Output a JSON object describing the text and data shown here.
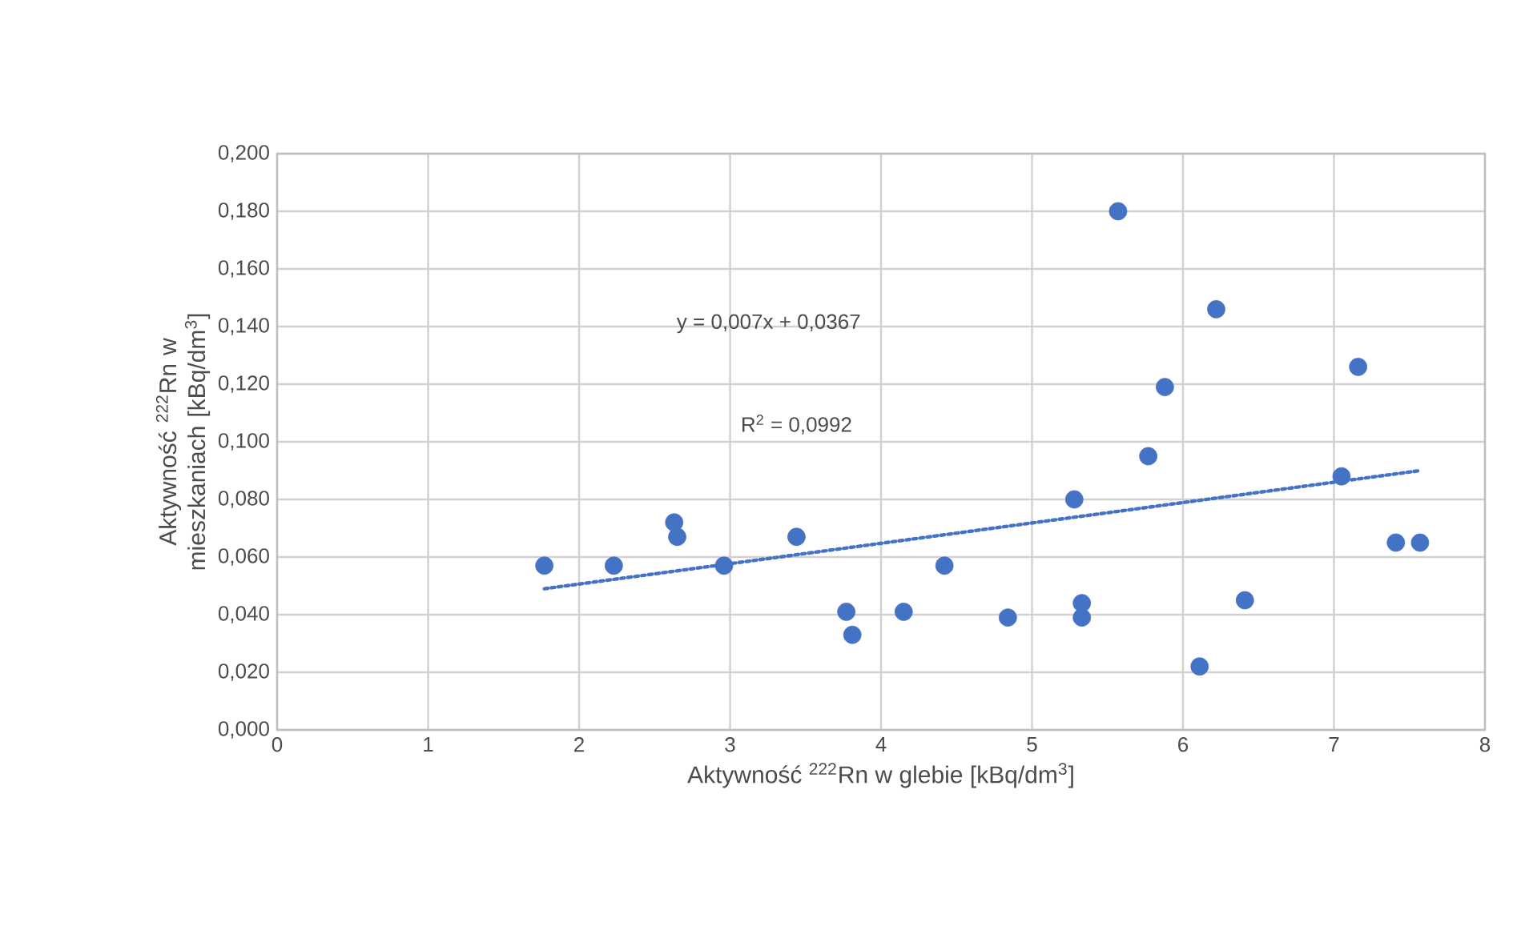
{
  "chart_data": {
    "type": "scatter",
    "xlabel": "Aktywność $^{222}$Rn w glebie [kBq/dm$^{3}$]",
    "ylabel": "Aktywność $^{222}$Rn w mieszkaniach [kBq/dm$^{3}$]",
    "xlim": [
      0,
      8
    ],
    "xticks": [
      0,
      1,
      2,
      3,
      4,
      5,
      6,
      7,
      8
    ],
    "ylim": [
      0,
      0.2
    ],
    "yticks": [
      {
        "value": 0,
        "label": "0,000"
      },
      {
        "value": 0.02,
        "label": "0,020"
      },
      {
        "value": 0.04,
        "label": "0,040"
      },
      {
        "value": 0.06,
        "label": "0,060"
      },
      {
        "value": 0.08,
        "label": "0,080"
      },
      {
        "value": 0.1,
        "label": "0,100"
      },
      {
        "value": 0.12,
        "label": "0,120"
      },
      {
        "value": 0.14,
        "label": "0,140"
      },
      {
        "value": 0.16,
        "label": "0,160"
      },
      {
        "value": 0.18,
        "label": "0,180"
      },
      {
        "value": 0.2,
        "label": "0,200"
      }
    ],
    "grid": true,
    "marker": "circle",
    "series": [
      {
        "color": "#4472c4",
        "x": [
          1.77,
          2.23,
          2.63,
          2.65,
          2.96,
          3.44,
          3.77,
          3.81,
          4.15,
          4.42,
          4.84,
          5.28,
          5.33,
          5.33,
          5.57,
          5.77,
          5.88,
          6.22,
          6.11,
          6.41,
          7.05,
          7.16,
          7.41,
          7.57
        ],
        "values": [
          0.057,
          0.057,
          0.072,
          0.067,
          0.057,
          0.067,
          0.041,
          0.033,
          0.041,
          0.057,
          0.039,
          0.08,
          0.044,
          0.039,
          0.18,
          0.095,
          0.119,
          0.146,
          0.022,
          0.045,
          0.088,
          0.126,
          0.065,
          0.065
        ]
      },
      {
        "type": "line",
        "color": "#4472c4",
        "line_style": "dotted",
        "marker": "none",
        "x": [
          1.77,
          7.57
        ],
        "values": [
          0.049,
          0.09
        ]
      }
    ],
    "annotations": [
      "y = 0,007x + 0,0367",
      "R$^{2}$ = 0,0992"
    ]
  }
}
